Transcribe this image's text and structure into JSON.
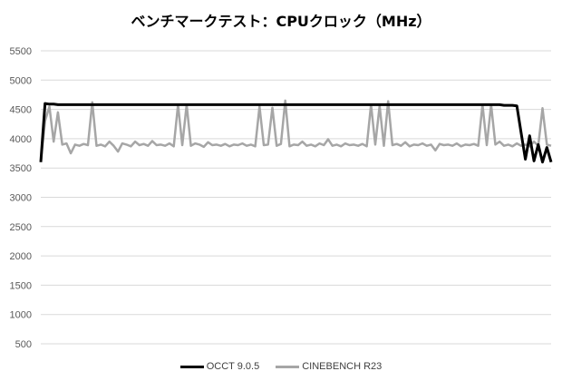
{
  "chart_data": {
    "type": "line",
    "title": "ベンチマークテスト：CPUクロック（MHz）",
    "xlabel": "",
    "ylabel": "",
    "ylim": [
      500,
      5500
    ],
    "yticks": [
      500,
      1000,
      1500,
      2000,
      2500,
      3000,
      3500,
      4000,
      4500,
      5000,
      5500
    ],
    "grid": true,
    "legend_position": "bottom",
    "series": [
      {
        "name": "OCCT 9.0.5",
        "color": "#000000",
        "values": [
          3600,
          4600,
          4590,
          4590,
          4580,
          4580,
          4580,
          4580,
          4580,
          4580,
          4580,
          4580,
          4580,
          4580,
          4580,
          4580,
          4580,
          4580,
          4580,
          4580,
          4580,
          4580,
          4580,
          4580,
          4580,
          4580,
          4580,
          4580,
          4580,
          4580,
          4580,
          4580,
          4580,
          4580,
          4580,
          4580,
          4580,
          4580,
          4580,
          4580,
          4580,
          4580,
          4580,
          4580,
          4580,
          4580,
          4580,
          4580,
          4580,
          4580,
          4580,
          4580,
          4580,
          4580,
          4580,
          4580,
          4580,
          4580,
          4580,
          4580,
          4580,
          4580,
          4580,
          4580,
          4580,
          4580,
          4580,
          4580,
          4580,
          4580,
          4580,
          4580,
          4580,
          4580,
          4580,
          4580,
          4580,
          4580,
          4580,
          4580,
          4580,
          4580,
          4580,
          4580,
          4580,
          4580,
          4580,
          4580,
          4580,
          4580,
          4580,
          4580,
          4580,
          4580,
          4580,
          4580,
          4580,
          4580,
          4580,
          4580,
          4580,
          4580,
          4580,
          4580,
          4580,
          4580,
          4580,
          4580,
          4570,
          4570,
          4570,
          4560,
          4100,
          3650,
          4050,
          3620,
          3900,
          3600,
          3850,
          3600
        ]
      },
      {
        "name": "CINEBENCH R23",
        "color": "#a6a6a6",
        "values": [
          3600,
          4300,
          4550,
          3950,
          4450,
          3900,
          3920,
          3750,
          3900,
          3880,
          3910,
          3890,
          4620,
          3880,
          3900,
          3870,
          3950,
          3880,
          3780,
          3920,
          3900,
          3870,
          3950,
          3890,
          3910,
          3880,
          3960,
          3890,
          3900,
          3880,
          3920,
          3870,
          4580,
          3890,
          4580,
          3880,
          3920,
          3900,
          3860,
          3940,
          3890,
          3900,
          3880,
          3910,
          3870,
          3900,
          3890,
          3920,
          3880,
          3900,
          3870,
          4550,
          3890,
          3900,
          4530,
          3880,
          3910,
          4650,
          3870,
          3900,
          3890,
          3950,
          3880,
          3900,
          3870,
          3920,
          3890,
          3990,
          3880,
          3900,
          3870,
          3920,
          3890,
          3900,
          3880,
          3910,
          3870,
          4580,
          3900,
          4560,
          3880,
          4640,
          3890,
          3910,
          3880,
          3940,
          3870,
          3900,
          3890,
          3920,
          3880,
          3900,
          3800,
          3910,
          3890,
          3900,
          3880,
          3920,
          3870,
          3900,
          3890,
          3910,
          3880,
          4580,
          3890,
          4580,
          3900,
          3950,
          3880,
          3900,
          3870,
          3920,
          3880,
          3900,
          3870,
          3950,
          3880,
          4520,
          3900,
          3880
        ]
      }
    ]
  }
}
